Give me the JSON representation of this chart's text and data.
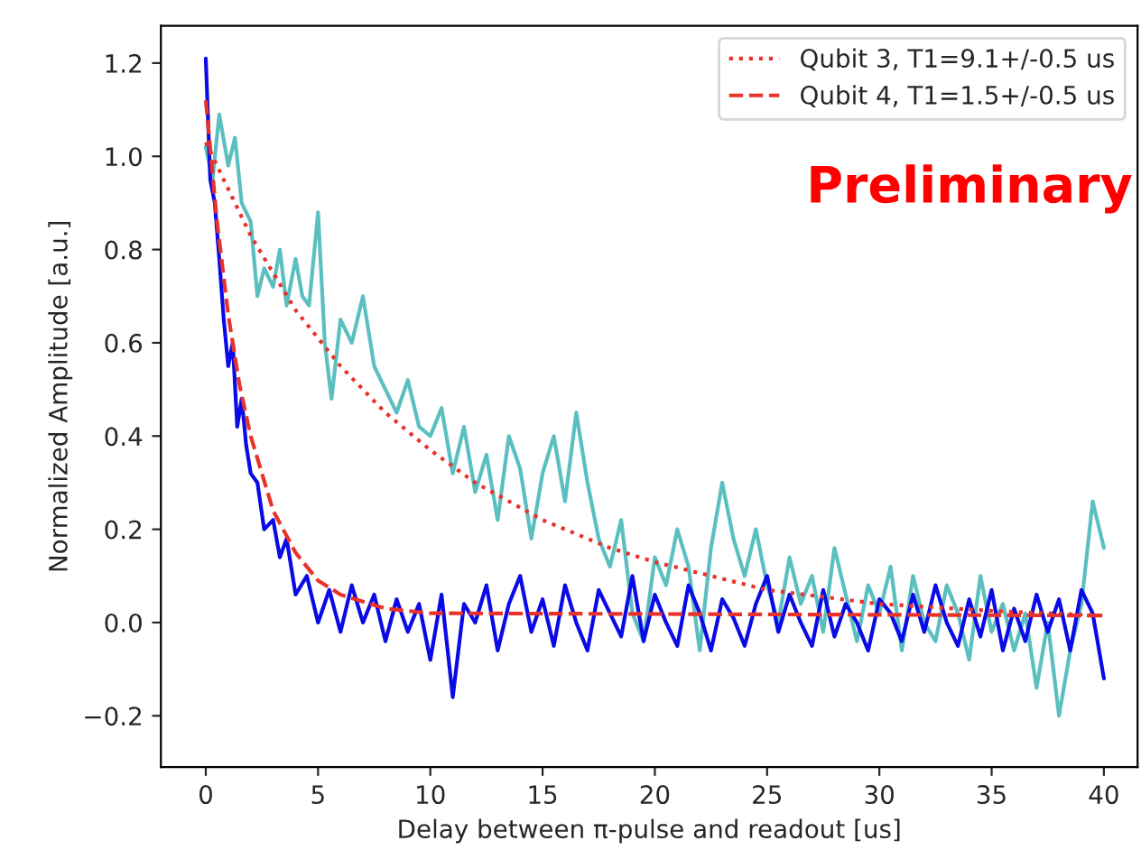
{
  "chart_data": {
    "type": "line",
    "xlabel": "Delay between π-pulse and readout [us]",
    "ylabel": "Normalized Amplitude [a.u.]",
    "annotations": [
      "Preliminary"
    ],
    "xlim": [
      -2.0,
      41.5
    ],
    "xticks": [
      0,
      5,
      10,
      15,
      20,
      25,
      30,
      35,
      40
    ],
    "ylim": [
      -0.31,
      1.28
    ],
    "yticks": [
      {
        "value": -0.2,
        "label": "−0.2"
      },
      {
        "value": 0,
        "label": "0.0"
      },
      0.2,
      0.4,
      0.6,
      0.8,
      {
        "value": 1,
        "label": "1.0"
      },
      1.2
    ],
    "legend": "top right",
    "grid": false,
    "series": [
      {
        "color": "#5bbfc0",
        "line_style": "solid",
        "x": [
          0,
          0.3,
          0.6,
          1,
          1.3,
          1.6,
          2,
          2.3,
          2.6,
          3,
          3.3,
          3.6,
          4,
          4.3,
          4.6,
          5,
          5.3,
          5.6,
          6,
          6.5,
          7,
          7.5,
          8,
          8.5,
          9,
          9.5,
          10,
          10.5,
          11,
          11.5,
          12,
          12.5,
          13,
          13.5,
          14,
          14.5,
          15,
          15.5,
          16,
          16.5,
          17,
          17.5,
          18,
          18.5,
          19,
          19.5,
          20,
          20.5,
          21,
          21.5,
          22,
          22.5,
          23,
          23.5,
          24,
          24.5,
          25,
          25.5,
          26,
          26.5,
          27,
          27.5,
          28,
          28.5,
          29,
          29.5,
          30,
          30.5,
          31,
          31.5,
          32,
          32.5,
          33,
          33.5,
          34,
          34.5,
          35,
          35.5,
          36,
          36.5,
          37,
          37.5,
          38,
          38.5,
          39,
          39.5,
          40
        ],
        "values": [
          1.02,
          0.95,
          1.09,
          0.98,
          1.04,
          0.9,
          0.86,
          0.7,
          0.76,
          0.72,
          0.8,
          0.68,
          0.78,
          0.7,
          0.68,
          0.88,
          0.6,
          0.48,
          0.65,
          0.6,
          0.7,
          0.55,
          0.5,
          0.45,
          0.52,
          0.42,
          0.4,
          0.46,
          0.32,
          0.42,
          0.28,
          0.36,
          0.22,
          0.4,
          0.33,
          0.18,
          0.32,
          0.4,
          0.26,
          0.45,
          0.3,
          0.18,
          0.12,
          0.22,
          0.02,
          -0.04,
          0.14,
          0.08,
          0.2,
          0.12,
          -0.06,
          0.16,
          0.3,
          0.18,
          0.1,
          0.2,
          0.08,
          0.0,
          0.14,
          0.04,
          0.1,
          -0.02,
          0.16,
          0.06,
          -0.04,
          0.08,
          0.02,
          0.12,
          -0.06,
          0.1,
          0.0,
          -0.04,
          0.08,
          0.02,
          -0.08,
          0.1,
          -0.02,
          0.04,
          -0.06,
          0.02,
          -0.14,
          0.0,
          -0.2,
          -0.06,
          0.04,
          0.26,
          0.16
        ]
      },
      {
        "color": "#0a0ae6",
        "line_style": "solid",
        "x": [
          0,
          0.2,
          0.4,
          0.6,
          0.8,
          1,
          1.2,
          1.4,
          1.6,
          1.8,
          2,
          2.3,
          2.6,
          3,
          3.3,
          3.6,
          4,
          4.5,
          5,
          5.5,
          6,
          6.5,
          7,
          7.5,
          8,
          8.5,
          9,
          9.5,
          10,
          10.5,
          11,
          11.5,
          12,
          12.5,
          13,
          13.5,
          14,
          14.5,
          15,
          15.5,
          16,
          16.5,
          17,
          17.5,
          18,
          18.5,
          19,
          19.5,
          20,
          20.5,
          21,
          21.5,
          22,
          22.5,
          23,
          23.5,
          24,
          24.5,
          25,
          25.5,
          26,
          26.5,
          27,
          27.5,
          28,
          28.5,
          29,
          29.5,
          30,
          30.5,
          31,
          31.5,
          32,
          32.5,
          33,
          33.5,
          34,
          34.5,
          35,
          35.5,
          36,
          36.5,
          37,
          37.5,
          38,
          38.5,
          39,
          39.5,
          40
        ],
        "values": [
          1.21,
          0.95,
          0.9,
          0.78,
          0.65,
          0.55,
          0.6,
          0.42,
          0.48,
          0.38,
          0.32,
          0.3,
          0.2,
          0.22,
          0.14,
          0.18,
          0.06,
          0.1,
          0.0,
          0.07,
          -0.02,
          0.08,
          0.0,
          0.06,
          -0.04,
          0.05,
          -0.02,
          0.04,
          -0.08,
          0.06,
          -0.16,
          0.04,
          0.0,
          0.08,
          -0.06,
          0.04,
          0.1,
          -0.02,
          0.05,
          -0.05,
          0.08,
          0.0,
          -0.06,
          0.07,
          0.02,
          -0.03,
          0.1,
          -0.04,
          0.06,
          0.0,
          -0.05,
          0.08,
          0.02,
          -0.06,
          0.05,
          0.01,
          -0.05,
          0.04,
          0.1,
          -0.02,
          0.06,
          0.0,
          -0.05,
          0.07,
          -0.03,
          0.04,
          0.0,
          -0.06,
          0.05,
          0.02,
          -0.04,
          0.06,
          -0.02,
          0.08,
          0.0,
          -0.05,
          0.05,
          -0.03,
          0.07,
          -0.06,
          0.03,
          -0.04,
          0.06,
          -0.02,
          0.05,
          -0.06,
          0.07,
          0.02,
          -0.12
        ]
      },
      {
        "name": "Qubit 3, T1=9.1+/-0.5 us",
        "color": "#e8322a",
        "line_style": "dotted",
        "x": [
          0,
          2,
          4,
          6,
          8,
          10,
          12,
          15,
          18,
          20,
          25,
          30,
          35,
          40
        ],
        "values": [
          1.03,
          0.83,
          0.67,
          0.55,
          0.45,
          0.37,
          0.3,
          0.22,
          0.16,
          0.13,
          0.07,
          0.04,
          0.025,
          0.015
        ]
      },
      {
        "name": "Qubit 4, T1=1.5+/-0.5 us",
        "color": "#e8322a",
        "line_style": "dashed",
        "x": [
          0,
          0.5,
          1,
          1.5,
          2,
          3,
          4,
          5,
          6,
          8,
          10,
          40
        ],
        "values": [
          1.12,
          0.86,
          0.66,
          0.51,
          0.4,
          0.24,
          0.15,
          0.09,
          0.06,
          0.03,
          0.02,
          0.015
        ]
      }
    ]
  }
}
